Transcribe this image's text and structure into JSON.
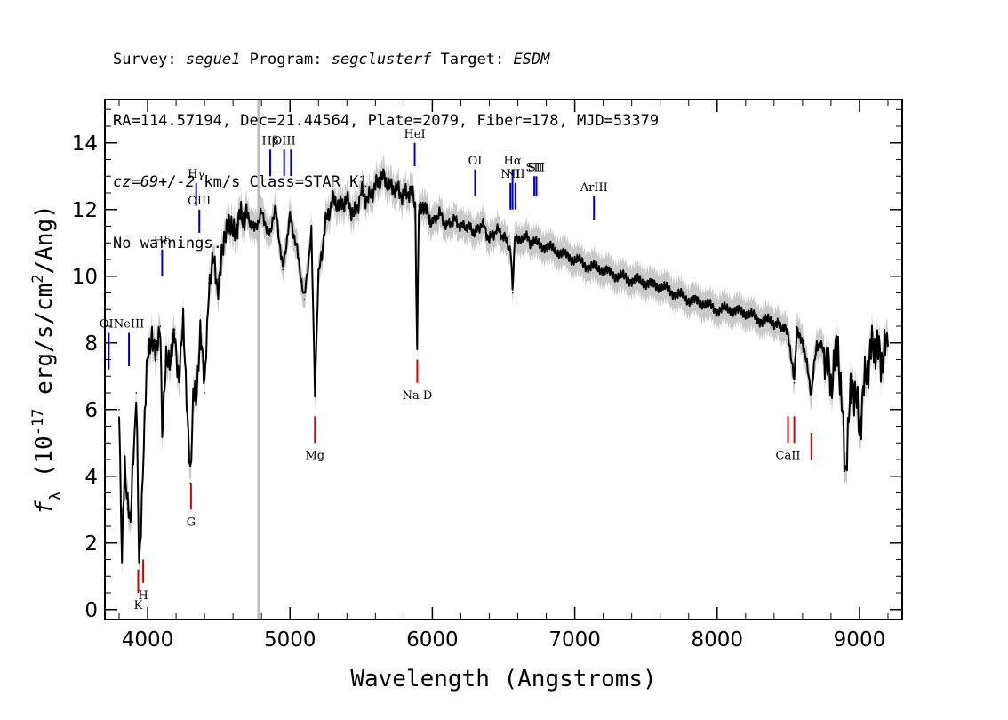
{
  "header": {
    "line1": {
      "survey_label": "Survey:",
      "survey": "segue1",
      "program_label": "Program:",
      "program": "segclusterf",
      "target_label": "Target:",
      "target": "ESDM"
    },
    "line2": "RA=114.57194, Dec=21.44564, Plate=2079, Fiber=178, MJD=53379",
    "line3": {
      "cz": "cz=69+/-2",
      "rest": "km/s Class=STAR K1"
    },
    "line4": "No warnings."
  },
  "colors": {
    "spectrum": "#000000",
    "error": "#bbbbbb",
    "emission": "#0000cc",
    "absorption": "#dd0000",
    "marker": "#bbbbbb"
  },
  "chart_data": {
    "type": "line",
    "xlabel": "Wavelength (Angstroms)",
    "ylabel": "f_λ (10^-17 erg/s/cm^2/Ang)",
    "xlim": [
      3700,
      9300
    ],
    "ylim": [
      -0.3,
      15.3
    ],
    "x_ticks": [
      4000,
      5000,
      6000,
      7000,
      8000,
      9000
    ],
    "y_ticks": [
      0,
      2,
      4,
      6,
      8,
      10,
      12,
      14
    ],
    "x_tick_labels": [
      "4000",
      "5000",
      "6000",
      "7000",
      "8000",
      "9000"
    ],
    "y_tick_labels": [
      "0",
      "2",
      "4",
      "6",
      "8",
      "10",
      "12",
      "14"
    ],
    "vertical_marker_x": 4780,
    "series": [
      {
        "x": [
          3800,
          3820,
          3840,
          3860,
          3880,
          3900,
          3920,
          3940,
          3960,
          3980,
          4000,
          4030,
          4060,
          4090,
          4102,
          4130,
          4160,
          4190,
          4220,
          4250,
          4280,
          4300,
          4320,
          4340,
          4370,
          4400,
          4430,
          4460,
          4490,
          4520,
          4560,
          4600,
          4650,
          4700,
          4750,
          4800,
          4861,
          4900,
          4950,
          5000,
          5050,
          5100,
          5150,
          5175,
          5200,
          5250,
          5300,
          5350,
          5400,
          5450,
          5500,
          5550,
          5600,
          5650,
          5700,
          5750,
          5800,
          5850,
          5880,
          5893,
          5905,
          5950,
          6000,
          6050,
          6100,
          6150,
          6200,
          6250,
          6300,
          6350,
          6400,
          6450,
          6500,
          6550,
          6563,
          6580,
          6650,
          6700,
          6800,
          6900,
          7000,
          7100,
          7200,
          7300,
          7400,
          7500,
          7600,
          7700,
          7800,
          7900,
          8000,
          8100,
          8200,
          8300,
          8400,
          8450,
          8500,
          8542,
          8560,
          8600,
          8662,
          8700,
          8750,
          8800,
          8850,
          8900,
          8950,
          9000,
          9050,
          9100,
          9150,
          9200
        ],
        "y": [
          6.0,
          1.5,
          4.5,
          3.0,
          2.8,
          4.5,
          6.5,
          1.5,
          3.0,
          6.0,
          7.5,
          8.4,
          7.5,
          8.5,
          5.5,
          7.8,
          7.2,
          8.4,
          6.9,
          8.5,
          6.0,
          3.8,
          6.5,
          6.3,
          8.5,
          6.5,
          9.8,
          10.5,
          9.5,
          10.8,
          11.4,
          11.2,
          11.8,
          11.8,
          11.4,
          11.9,
          11.2,
          12.0,
          10.2,
          11.8,
          10.8,
          9.3,
          11.3,
          6.6,
          10.0,
          11.6,
          12.3,
          12.1,
          12.3,
          11.8,
          12.5,
          12.3,
          12.7,
          13.0,
          12.7,
          12.6,
          12.4,
          12.6,
          12.0,
          7.9,
          12.1,
          12.0,
          11.6,
          11.9,
          11.5,
          11.7,
          11.5,
          11.5,
          11.3,
          11.6,
          11.1,
          11.4,
          11.2,
          10.8,
          9.5,
          11.1,
          11.2,
          11.0,
          10.9,
          10.7,
          10.5,
          10.3,
          10.2,
          10.0,
          9.9,
          9.8,
          9.7,
          9.5,
          9.3,
          9.2,
          9.0,
          9.0,
          8.9,
          8.7,
          8.6,
          8.5,
          8.3,
          6.8,
          8.4,
          8.1,
          6.5,
          8.0,
          7.8,
          6.8,
          8.0,
          4.2,
          7.0,
          5.5,
          7.2,
          8.0,
          7.5,
          7.9
        ]
      }
    ],
    "emission_lines": [
      {
        "label": "OII",
        "x": 3727,
        "y0": 7.2,
        "y1": 8.3
      },
      {
        "label": "NeIII",
        "x": 3869,
        "y0": 7.3,
        "y1": 8.3
      },
      {
        "label": "Hδ",
        "x": 4102,
        "y0": 10.0,
        "y1": 10.8
      },
      {
        "label": "Hγ",
        "x": 4341,
        "y0": 12.1,
        "y1": 12.8
      },
      {
        "label": "OIII",
        "x": 4363,
        "y0": 11.3,
        "y1": 12.0
      },
      {
        "label": "Hβ",
        "x": 4861,
        "y0": 13.0,
        "y1": 13.8
      },
      {
        "label": "OIII",
        "x": 4959,
        "y0": 13.0,
        "y1": 13.8
      },
      {
        "label": "",
        "x": 5007,
        "y0": 13.0,
        "y1": 13.8
      },
      {
        "label": "HeI",
        "x": 5876,
        "y0": 13.3,
        "y1": 14.0
      },
      {
        "label": "OI",
        "x": 6300,
        "y0": 12.4,
        "y1": 13.2
      },
      {
        "label": "NII",
        "x": 6548,
        "y0": 12.0,
        "y1": 12.8
      },
      {
        "label": "Hα",
        "x": 6563,
        "y0": 12.0,
        "y1": 13.2
      },
      {
        "label": "NII",
        "x": 6583,
        "y0": 12.0,
        "y1": 12.8
      },
      {
        "label": "SII",
        "x": 6716,
        "y0": 12.4,
        "y1": 13.0
      },
      {
        "label": "SII",
        "x": 6731,
        "y0": 12.4,
        "y1": 13.0
      },
      {
        "label": "ArIII",
        "x": 7135,
        "y0": 11.7,
        "y1": 12.4
      }
    ],
    "absorption_lines": [
      {
        "label": "K",
        "x": 3934,
        "y0": 0.5,
        "y1": 1.2
      },
      {
        "label": "H",
        "x": 3969,
        "y0": 0.8,
        "y1": 1.5
      },
      {
        "label": "G",
        "x": 4305,
        "y0": 3.0,
        "y1": 3.8
      },
      {
        "label": "Mg",
        "x": 5175,
        "y0": 5.0,
        "y1": 5.8
      },
      {
        "label": "Na D",
        "x": 5894,
        "y0": 6.8,
        "y1": 7.5
      },
      {
        "label": "CaII",
        "x": 8498,
        "y0": 5.0,
        "y1": 5.8
      },
      {
        "label": "",
        "x": 8542,
        "y0": 5.0,
        "y1": 5.8
      },
      {
        "label": "",
        "x": 8662,
        "y0": 4.5,
        "y1": 5.3
      }
    ]
  }
}
